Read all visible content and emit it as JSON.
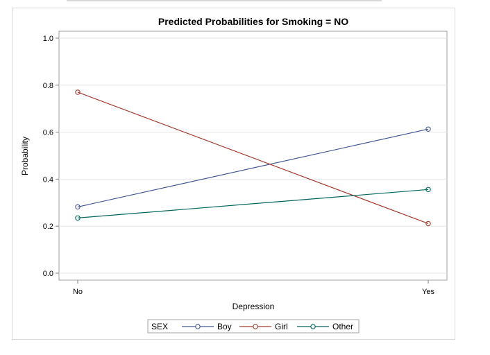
{
  "chart_data": {
    "type": "line",
    "title": "Predicted Probabilities for Smoking = NO",
    "xlabel": "Depression",
    "ylabel": "Probability",
    "categories": [
      "No",
      "Yes"
    ],
    "ylim": [
      0,
      1
    ],
    "yticks": [
      "0.0",
      "0.2",
      "0.4",
      "0.6",
      "0.8",
      "1.0"
    ],
    "ytick_values": [
      0,
      0.2,
      0.4,
      0.6,
      0.8,
      1.0
    ],
    "grid": true,
    "legend": {
      "title": "SEX",
      "placement": "bottom"
    },
    "series": [
      {
        "name": "Boy",
        "values": [
          0.282,
          0.613
        ],
        "color": "#445694"
      },
      {
        "name": "Girl",
        "values": [
          0.77,
          0.211
        ],
        "color": "#A23A2E"
      },
      {
        "name": "Other",
        "values": [
          0.235,
          0.356
        ],
        "color": "#01665E"
      }
    ]
  }
}
